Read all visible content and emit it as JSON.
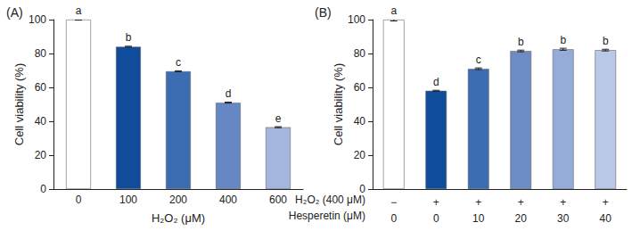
{
  "chart_data": [
    {
      "type": "bar",
      "title": "(A)",
      "xlabel": "H₂O₂ (μM)",
      "ylabel": "Cell viability (%)",
      "categories": [
        "0",
        "100",
        "200",
        "400",
        "600"
      ],
      "values": [
        100,
        84,
        69.5,
        51,
        36.5
      ],
      "errors": [
        0.3,
        0.3,
        0.3,
        0.3,
        0.3
      ],
      "annotations": [
        "a",
        "b",
        "c",
        "d",
        "e"
      ],
      "colors": [
        "#ffffff",
        "#0f4c9c",
        "#3c6db3",
        "#6687c4",
        "#a3b6dd"
      ],
      "ylim": [
        0,
        100
      ],
      "yticks": [
        0,
        20,
        40,
        60,
        80,
        100
      ],
      "grid": false
    },
    {
      "type": "bar",
      "title": "(B)",
      "ylabel": "Cell viability (%)",
      "categories": [
        null,
        null,
        null,
        null,
        null,
        null
      ],
      "x_rows": [
        {
          "label": "H₂O₂ (400 μM)",
          "cells": [
            "−",
            "+",
            "+",
            "+",
            "+",
            "+"
          ]
        },
        {
          "label": "Hesperetin (μM)",
          "cells": [
            "0",
            "0",
            "10",
            "20",
            "30",
            "40"
          ]
        }
      ],
      "values": [
        100,
        58,
        71,
        81.5,
        82.5,
        82
      ],
      "errors": [
        0.8,
        0.3,
        0.5,
        0.5,
        0.6,
        0.5
      ],
      "annotations": [
        "a",
        "d",
        "c",
        "b",
        "b",
        "b"
      ],
      "colors": [
        "#ffffff",
        "#0f4c9c",
        "#3c6db3",
        "#6d8cc6",
        "#95abd8",
        "#b9c8e6"
      ],
      "ylim": [
        0,
        100
      ],
      "yticks": [
        0,
        20,
        40,
        60,
        80,
        100
      ],
      "grid": false
    }
  ]
}
